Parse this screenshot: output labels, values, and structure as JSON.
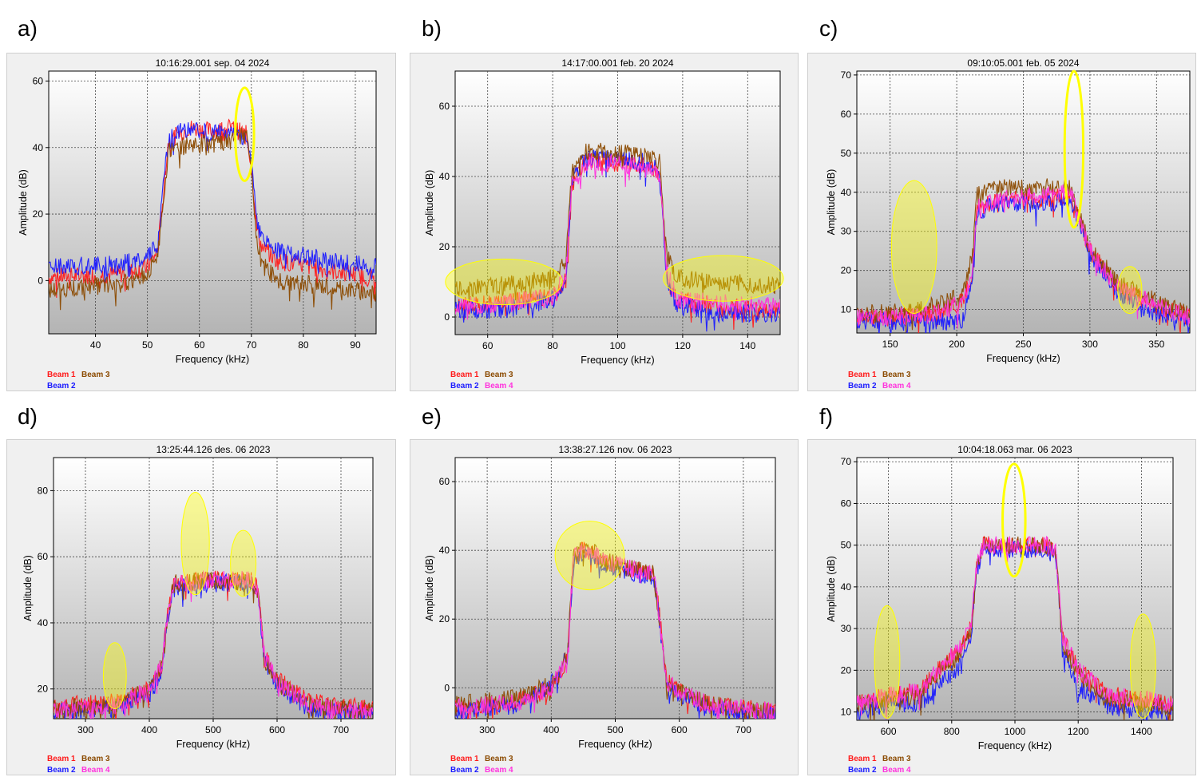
{
  "panel_labels": [
    "a)",
    "b)",
    "c)",
    "d)",
    "e)",
    "f)"
  ],
  "colors": {
    "beam1": "#ff1a1a",
    "beam2": "#1a1aff",
    "beam3": "#8b4a00",
    "beam4": "#ff33dd",
    "highlight": "#ffff00",
    "plot_top": "#ffffff",
    "plot_bottom": "#b4b4b4"
  },
  "chart_data": [
    {
      "type": "line",
      "title": "10:16:29.001 sep. 04 2024",
      "xlabel": "Frequency (kHz)",
      "ylabel": "Amplitude (dB)",
      "xlim": [
        31,
        94
      ],
      "ylim": [
        -16,
        63
      ],
      "xticks": [
        40,
        50,
        60,
        70,
        80,
        90
      ],
      "yticks": [
        0,
        20,
        40,
        60
      ],
      "series": [
        {
          "name": "Beam 1",
          "color": "#ff1a1a",
          "x": [
            31,
            45,
            50,
            52,
            54,
            58,
            62,
            66,
            69,
            70,
            71,
            72,
            75,
            85,
            94
          ],
          "values": [
            1,
            2,
            4,
            9,
            42,
            46,
            45,
            46,
            44,
            35,
            16,
            10,
            6,
            3,
            1
          ]
        },
        {
          "name": "Beam 2",
          "color": "#1a1aff",
          "x": [
            31,
            45,
            50,
            52,
            54,
            58,
            62,
            66,
            69,
            70,
            71,
            72,
            75,
            85,
            94
          ],
          "values": [
            4,
            5,
            7,
            11,
            43,
            46,
            44,
            45,
            43,
            36,
            18,
            13,
            9,
            6,
            4
          ]
        },
        {
          "name": "Beam 3",
          "color": "#8b4a00",
          "x": [
            31,
            45,
            50,
            52,
            54,
            58,
            62,
            66,
            69,
            70,
            71,
            72,
            75,
            85,
            94
          ],
          "values": [
            -3,
            -1,
            2,
            8,
            39,
            41,
            41,
            42,
            44,
            34,
            13,
            5,
            0,
            -2,
            -4
          ]
        }
      ],
      "highlights": [
        {
          "x": 68.7,
          "y": 44,
          "rx": 1.8,
          "ry": 14,
          "fill": false
        }
      ],
      "legend": {
        "placement": "bottom-left",
        "row1": [
          "Beam 1",
          "Beam 3"
        ],
        "row2": [
          "Beam 2"
        ]
      }
    },
    {
      "type": "line",
      "title": "14:17:00.001 feb. 20 2024",
      "xlabel": "Frequency (kHz)",
      "ylabel": "Amplitude (dB)",
      "xlim": [
        50,
        150
      ],
      "ylim": [
        -5,
        70
      ],
      "xticks": [
        60,
        80,
        100,
        120,
        140
      ],
      "yticks": [
        0,
        20,
        40,
        60
      ],
      "series": [
        {
          "name": "Beam 1",
          "color": "#ff1a1a",
          "x": [
            50,
            65,
            80,
            84,
            86,
            90,
            100,
            110,
            113,
            115,
            118,
            130,
            150
          ],
          "values": [
            3,
            4,
            6,
            10,
            38,
            44,
            44,
            43,
            40,
            14,
            5,
            3,
            2
          ]
        },
        {
          "name": "Beam 2",
          "color": "#1a1aff",
          "x": [
            50,
            65,
            80,
            84,
            86,
            90,
            100,
            110,
            113,
            115,
            118,
            130,
            150
          ],
          "values": [
            2,
            2,
            5,
            9,
            40,
            45,
            45,
            44,
            42,
            12,
            4,
            1,
            1
          ]
        },
        {
          "name": "Beam 3",
          "color": "#8b4a00",
          "x": [
            50,
            65,
            80,
            84,
            86,
            90,
            100,
            110,
            113,
            115,
            118,
            130,
            150
          ],
          "values": [
            8,
            9,
            11,
            16,
            42,
            47,
            47,
            46,
            44,
            18,
            11,
            10,
            9
          ]
        },
        {
          "name": "Beam 4",
          "color": "#ff33dd",
          "x": [
            50,
            65,
            80,
            84,
            86,
            90,
            100,
            110,
            113,
            115,
            118,
            130,
            150
          ],
          "values": [
            3,
            4,
            6,
            12,
            38,
            43,
            44,
            43,
            40,
            14,
            5,
            4,
            3
          ]
        }
      ],
      "highlights": [
        {
          "x": 65,
          "y": 10,
          "rx": 18,
          "ry": 6.5,
          "fill": true
        },
        {
          "x": 132.5,
          "y": 11,
          "rx": 18.5,
          "ry": 6.5,
          "fill": true
        }
      ],
      "legend": {
        "placement": "bottom-left",
        "row1": [
          "Beam 1",
          "Beam 3"
        ],
        "row2": [
          "Beam 2",
          "Beam 4"
        ]
      }
    },
    {
      "type": "line",
      "title": "09:10:05.001 feb. 05 2024",
      "xlabel": "Frequency (kHz)",
      "ylabel": "Amplitude (dB)",
      "xlim": [
        125,
        375
      ],
      "ylim": [
        4,
        71
      ],
      "xticks": [
        150,
        200,
        250,
        300,
        350
      ],
      "yticks": [
        10,
        20,
        30,
        40,
        50,
        60,
        70
      ],
      "series": [
        {
          "name": "Beam 1",
          "color": "#ff1a1a",
          "x": [
            125,
            150,
            185,
            205,
            212,
            215,
            230,
            260,
            285,
            290,
            300,
            320,
            350,
            375
          ],
          "values": [
            8,
            8,
            9,
            12,
            20,
            36,
            38,
            38,
            39,
            35,
            25,
            16,
            11,
            8
          ]
        },
        {
          "name": "Beam 2",
          "color": "#1a1aff",
          "x": [
            125,
            150,
            185,
            205,
            212,
            215,
            230,
            260,
            285,
            290,
            300,
            320,
            350,
            375
          ],
          "values": [
            7,
            7,
            7,
            7,
            20,
            35,
            37,
            37,
            38,
            34,
            24,
            15,
            9,
            7
          ]
        },
        {
          "name": "Beam 3",
          "color": "#8b4a00",
          "x": [
            125,
            150,
            185,
            205,
            212,
            215,
            230,
            260,
            285,
            290,
            300,
            320,
            350,
            375
          ],
          "values": [
            9,
            9,
            11,
            14,
            24,
            39,
            41,
            41,
            42,
            36,
            26,
            17,
            12,
            9
          ]
        },
        {
          "name": "Beam 4",
          "color": "#ff33dd",
          "x": [
            125,
            150,
            185,
            205,
            212,
            215,
            230,
            260,
            285,
            290,
            300,
            320,
            350,
            375
          ],
          "values": [
            8,
            8,
            9,
            12,
            21,
            36,
            38,
            39,
            40,
            35,
            25,
            16,
            11,
            8
          ]
        }
      ],
      "highlights": [
        {
          "x": 168,
          "y": 26,
          "rx": 17,
          "ry": 17,
          "fill": true
        },
        {
          "x": 288,
          "y": 51,
          "rx": 7,
          "ry": 20,
          "fill": false
        },
        {
          "x": 330,
          "y": 15,
          "rx": 9,
          "ry": 6,
          "fill": true
        }
      ],
      "legend": {
        "placement": "bottom-left",
        "row1": [
          "Beam 1",
          "Beam 3"
        ],
        "row2": [
          "Beam 2",
          "Beam 4"
        ]
      }
    },
    {
      "type": "line",
      "title": "13:25:44.126 des. 06 2023",
      "xlabel": "Frequency (kHz)",
      "ylabel": "Amplitude (dB)",
      "xlim": [
        250,
        750
      ],
      "ylim": [
        11,
        90
      ],
      "xticks": [
        300,
        400,
        500,
        600,
        700
      ],
      "yticks": [
        20,
        40,
        60,
        80
      ],
      "series": [
        {
          "name": "Beam 1",
          "color": "#ff1a1a",
          "x": [
            250,
            350,
            400,
            420,
            430,
            440,
            500,
            560,
            570,
            580,
            600,
            650,
            750
          ],
          "values": [
            15,
            16,
            20,
            27,
            45,
            52,
            53,
            53,
            50,
            30,
            23,
            16,
            14
          ]
        },
        {
          "name": "Beam 2",
          "color": "#1a1aff",
          "x": [
            250,
            350,
            400,
            420,
            430,
            440,
            500,
            560,
            570,
            580,
            600,
            650,
            750
          ],
          "values": [
            13,
            14,
            19,
            26,
            44,
            51,
            52,
            52,
            49,
            28,
            21,
            14,
            12
          ]
        },
        {
          "name": "Beam 3",
          "color": "#8b4a00",
          "x": [
            250,
            350,
            400,
            420,
            430,
            440,
            500,
            560,
            570,
            580,
            600,
            650,
            750
          ],
          "values": [
            14,
            15,
            20,
            27,
            45,
            52,
            53,
            52,
            49,
            29,
            22,
            15,
            13
          ]
        },
        {
          "name": "Beam 4",
          "color": "#ff33dd",
          "x": [
            250,
            350,
            400,
            420,
            430,
            440,
            500,
            560,
            570,
            580,
            600,
            650,
            750
          ],
          "values": [
            14,
            15,
            20,
            28,
            46,
            52,
            53,
            53,
            50,
            30,
            22,
            15,
            13
          ]
        }
      ],
      "highlights": [
        {
          "x": 346,
          "y": 24,
          "rx": 18,
          "ry": 10,
          "fill": true
        },
        {
          "x": 472,
          "y": 64,
          "rx": 22,
          "ry": 15.5,
          "fill": true
        },
        {
          "x": 547,
          "y": 58,
          "rx": 20,
          "ry": 10,
          "fill": true
        }
      ],
      "legend": {
        "placement": "bottom-left",
        "row1": [
          "Beam 1",
          "Beam 3"
        ],
        "row2": [
          "Beam 2",
          "Beam 4"
        ]
      }
    },
    {
      "type": "line",
      "title": "13:38:27.126 nov. 06 2023",
      "xlabel": "Frequency (kHz)",
      "ylabel": "Amplitude (dB)",
      "xlim": [
        250,
        750
      ],
      "ylim": [
        -9,
        67
      ],
      "xticks": [
        300,
        400,
        500,
        600,
        700
      ],
      "yticks": [
        0,
        20,
        40,
        60
      ],
      "series": [
        {
          "name": "Beam 1",
          "color": "#ff1a1a",
          "x": [
            250,
            350,
            400,
            425,
            435,
            450,
            500,
            560,
            570,
            580,
            600,
            650,
            750
          ],
          "values": [
            -6,
            -4,
            0,
            8,
            38,
            40,
            36,
            33,
            20,
            2,
            -1,
            -5,
            -7
          ]
        },
        {
          "name": "Beam 2",
          "color": "#1a1aff",
          "x": [
            250,
            350,
            400,
            425,
            435,
            450,
            500,
            560,
            570,
            580,
            600,
            650,
            750
          ],
          "values": [
            -7,
            -5,
            1,
            9,
            37,
            39,
            35,
            32,
            18,
            0,
            -2,
            -6,
            -8
          ]
        },
        {
          "name": "Beam 3",
          "color": "#8b4a00",
          "x": [
            250,
            350,
            400,
            425,
            435,
            450,
            500,
            560,
            570,
            580,
            600,
            650,
            750
          ],
          "values": [
            -5,
            -3,
            1,
            9,
            38,
            41,
            36,
            33,
            19,
            1,
            -1,
            -5,
            -7
          ]
        },
        {
          "name": "Beam 4",
          "color": "#ff33dd",
          "x": [
            250,
            350,
            400,
            425,
            435,
            450,
            500,
            560,
            570,
            580,
            600,
            650,
            750
          ],
          "values": [
            -6,
            -4,
            0,
            9,
            38,
            40,
            36,
            33,
            19,
            2,
            -1,
            -5,
            -7
          ]
        }
      ],
      "highlights": [
        {
          "x": 460,
          "y": 38.5,
          "rx": 54,
          "ry": 10,
          "fill": true
        }
      ],
      "legend": {
        "placement": "bottom-left",
        "row1": [
          "Beam 1",
          "Beam 3"
        ],
        "row2": [
          "Beam 2",
          "Beam 4"
        ]
      }
    },
    {
      "type": "line",
      "title": "10:04:18.063 mar. 06 2023",
      "xlabel": "Frequency (kHz)",
      "ylabel": "Amplitude (dB)",
      "xlim": [
        500,
        1500
      ],
      "ylim": [
        8,
        71
      ],
      "xticks": [
        600,
        800,
        1000,
        1200,
        1400
      ],
      "yticks": [
        10,
        20,
        30,
        40,
        50,
        60,
        70
      ],
      "series": [
        {
          "name": "Beam 1",
          "color": "#ff1a1a",
          "x": [
            500,
            600,
            700,
            780,
            820,
            860,
            880,
            900,
            1000,
            1100,
            1130,
            1150,
            1200,
            1300,
            1400,
            1500
          ],
          "values": [
            12,
            14,
            15,
            22,
            24,
            30,
            45,
            50,
            50,
            50,
            48,
            28,
            20,
            14,
            13,
            12
          ]
        },
        {
          "name": "Beam 2",
          "color": "#1a1aff",
          "x": [
            500,
            600,
            700,
            780,
            820,
            860,
            880,
            900,
            1000,
            1100,
            1130,
            1150,
            1200,
            1300,
            1400,
            1500
          ],
          "values": [
            10,
            12,
            12,
            18,
            20,
            28,
            44,
            49,
            49,
            49,
            47,
            25,
            16,
            11,
            10,
            10
          ]
        },
        {
          "name": "Beam 3",
          "color": "#8b4a00",
          "x": [
            500,
            600,
            700,
            780,
            820,
            860,
            880,
            900,
            1000,
            1100,
            1130,
            1150,
            1200,
            1300,
            1400,
            1500
          ],
          "values": [
            12,
            13,
            14,
            21,
            23,
            29,
            45,
            50,
            50,
            50,
            48,
            27,
            19,
            13,
            12,
            11
          ]
        },
        {
          "name": "Beam 4",
          "color": "#ff33dd",
          "x": [
            500,
            600,
            700,
            780,
            820,
            860,
            880,
            900,
            1000,
            1100,
            1130,
            1150,
            1200,
            1300,
            1400,
            1500
          ],
          "values": [
            12,
            14,
            15,
            22,
            25,
            30,
            46,
            50,
            50,
            50,
            48,
            28,
            20,
            14,
            13,
            12
          ]
        }
      ],
      "highlights": [
        {
          "x": 596,
          "y": 22,
          "rx": 40,
          "ry": 13.5,
          "fill": true
        },
        {
          "x": 997,
          "y": 56,
          "rx": 36,
          "ry": 13.5,
          "fill": false
        },
        {
          "x": 1405,
          "y": 21,
          "rx": 40,
          "ry": 12.5,
          "fill": true
        }
      ],
      "legend": {
        "placement": "bottom-left",
        "row1": [
          "Beam 1",
          "Beam 3"
        ],
        "row2": [
          "Beam 2",
          "Beam 4"
        ]
      }
    }
  ]
}
